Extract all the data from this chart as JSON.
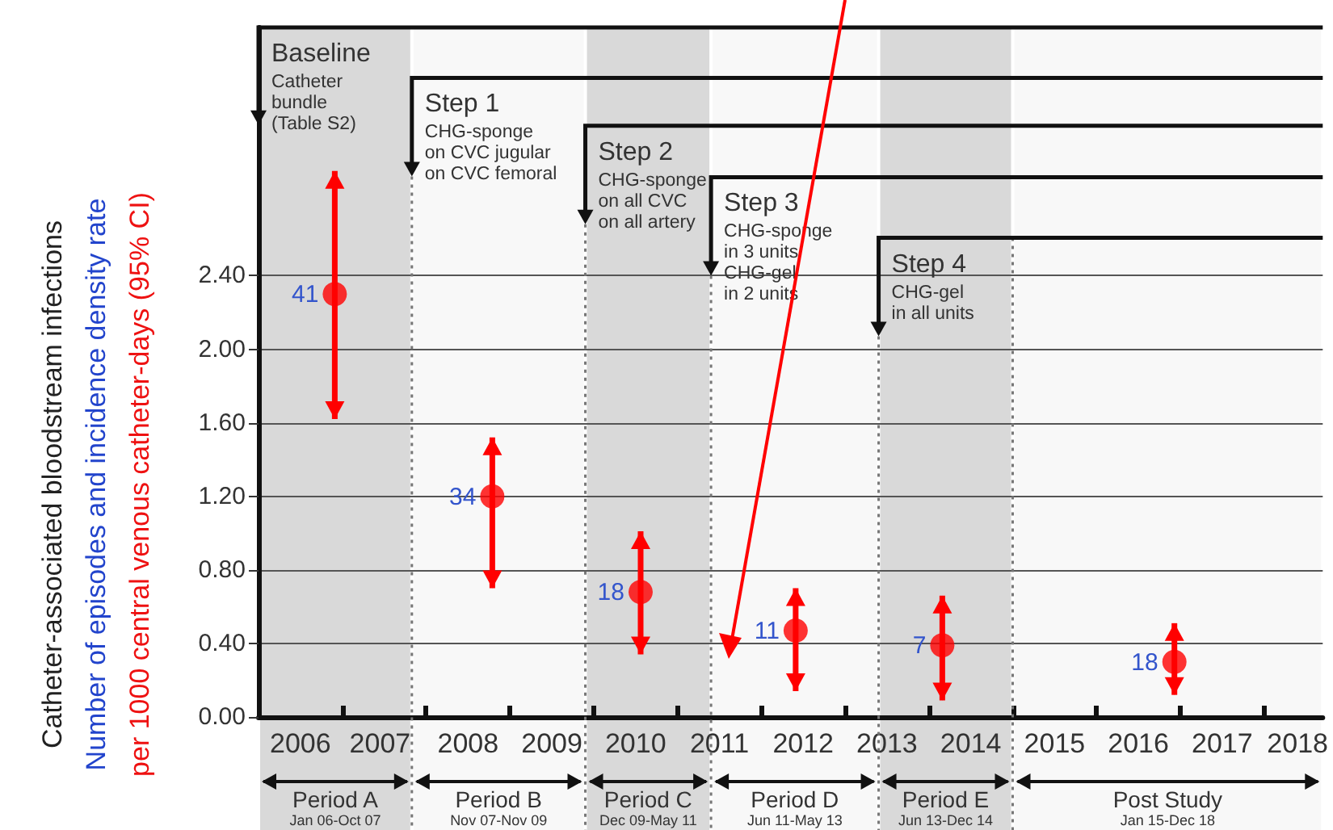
{
  "chart_data": {
    "type": "scatter",
    "ylabel": "Catheter-associated bloodstream infections\nNumber of episodes and incidence density rate\nper 1000 central venous catheter-days (95% CI)",
    "x": [
      2006.91,
      2008.79,
      2010.56,
      2012.41,
      2014.16,
      2016.93
    ],
    "series": [
      {
        "color": "#ff0000",
        "values": [
          2.3,
          1.2,
          0.68,
          0.47,
          0.39,
          0.3
        ],
        "errors": [
          [
            1.62,
            2.97
          ],
          [
            0.7,
            1.52
          ],
          [
            0.34,
            1.01
          ],
          [
            0.14,
            0.7
          ],
          [
            0.09,
            0.66
          ],
          [
            0.12,
            0.51
          ]
        ]
      }
    ],
    "xlim": [
      2006,
      2018.7
    ],
    "ylim": [
      0,
      3.75
    ],
    "xticks": [
      {
        "value": 2006.5,
        "label": "2006"
      },
      {
        "value": 2007.45,
        "label": "2007"
      },
      {
        "value": 2008.5,
        "label": "2008"
      },
      {
        "value": 2009.5,
        "label": "2009"
      },
      {
        "value": 2010.5,
        "label": "2010"
      },
      {
        "value": 2011.5,
        "label": "2011"
      },
      {
        "value": 2012.5,
        "label": "2012"
      },
      {
        "value": 2013.5,
        "label": "2013"
      },
      {
        "value": 2014.5,
        "label": "2014"
      },
      {
        "value": 2015.5,
        "label": "2015"
      },
      {
        "value": 2016.5,
        "label": "2016"
      },
      {
        "value": 2017.5,
        "label": "2017"
      },
      {
        "value": 2018.4,
        "label": "2018"
      },
      {
        "value": 2007,
        "label": null
      },
      {
        "value": 2008,
        "label": null
      },
      {
        "value": 2009,
        "label": null
      },
      {
        "value": 2010,
        "label": null
      },
      {
        "value": 2011,
        "label": null
      },
      {
        "value": 2012,
        "label": null
      },
      {
        "value": 2013,
        "label": null
      },
      {
        "value": 2014,
        "label": null
      },
      {
        "value": 2015,
        "label": null
      },
      {
        "value": 2016,
        "label": null
      },
      {
        "value": 2017,
        "label": null
      },
      {
        "value": 2018,
        "label": null
      }
    ],
    "yticks": [
      {
        "value": 0,
        "label": "0.00"
      },
      {
        "value": 0.4,
        "label": "0.40"
      },
      {
        "value": 0.8,
        "label": "0.80"
      },
      {
        "value": 1.2,
        "label": "1.20"
      },
      {
        "value": 1.6,
        "label": "1.60"
      },
      {
        "value": 2.0,
        "label": "2.00"
      },
      {
        "value": 2.4,
        "label": "2.40"
      }
    ],
    "grid": "y",
    "marker": "circle",
    "ref_lines": [
      {
        "axis": "x",
        "value": 2007.83,
        "line_style": "dotted",
        "color": "#777777"
      },
      {
        "axis": "x",
        "value": 2009.9,
        "line_style": "dotted",
        "color": "#777777"
      },
      {
        "axis": "x",
        "value": 2011.4,
        "line_style": "dotted",
        "color": "#777777"
      },
      {
        "axis": "x",
        "value": 2013.4,
        "line_style": "dotted",
        "color": "#777777"
      },
      {
        "axis": "x",
        "value": 2015.0,
        "line_style": "dotted",
        "color": "#777777"
      }
    ],
    "bands": [
      {
        "axis": "x",
        "from": 2006,
        "to": 2007.83,
        "label": "Period A\nJan 06-Oct 07",
        "color": "#d9d9d9"
      },
      {
        "axis": "x",
        "from": 2007.83,
        "to": 2009.9,
        "label": "Period B\nNov 07-Nov 09",
        "color": "#f8f8f8"
      },
      {
        "axis": "x",
        "from": 2009.9,
        "to": 2011.4,
        "label": "Period C\nDec 09-May 11",
        "color": "#d9d9d9"
      },
      {
        "axis": "x",
        "from": 2011.4,
        "to": 2013.4,
        "label": "Period D\nJun 11-May 13",
        "color": "#f8f8f8"
      },
      {
        "axis": "x",
        "from": 2013.4,
        "to": 2015.0,
        "label": "Period E\nJun 13-Dec 14",
        "color": "#d9d9d9"
      },
      {
        "axis": "x",
        "from": 2015.0,
        "to": 2018.7,
        "label": "Post Study\nJan 15-Dec 18",
        "color": "#f8f8f8"
      }
    ],
    "annotations": [
      {
        "text": "Baseline\nCatheter\nbundle\n(Table S2)",
        "x": 2006,
        "y": 3.22
      },
      {
        "text": "Step 1\nCHG-sponge\non CVC jugular\non CVC femoral",
        "x": 2007.83,
        "y": 2.94
      },
      {
        "text": "Step 2\nCHG-sponge\non all CVC\non all artery",
        "x": 2009.9,
        "y": 2.68
      },
      {
        "text": "Step 3\nCHG-sponge\nin 3 units\nCHG-gel\nin 2 units",
        "x": 2011.4,
        "y": 2.4
      },
      {
        "text": "Step 4\nCHG-gel\nin all units",
        "x": 2013.4,
        "y": 2.07
      },
      {
        "text": "41",
        "x": 2006.91,
        "y": 2.3
      },
      {
        "text": "34",
        "x": 2008.79,
        "y": 1.2
      },
      {
        "text": "18",
        "x": 2010.56,
        "y": 0.68
      },
      {
        "text": "11",
        "x": 2012.41,
        "y": 0.47
      },
      {
        "text": "7",
        "x": 2014.16,
        "y": 0.39
      },
      {
        "text": "18",
        "x": 2016.93,
        "y": 0.3
      }
    ]
  }
}
